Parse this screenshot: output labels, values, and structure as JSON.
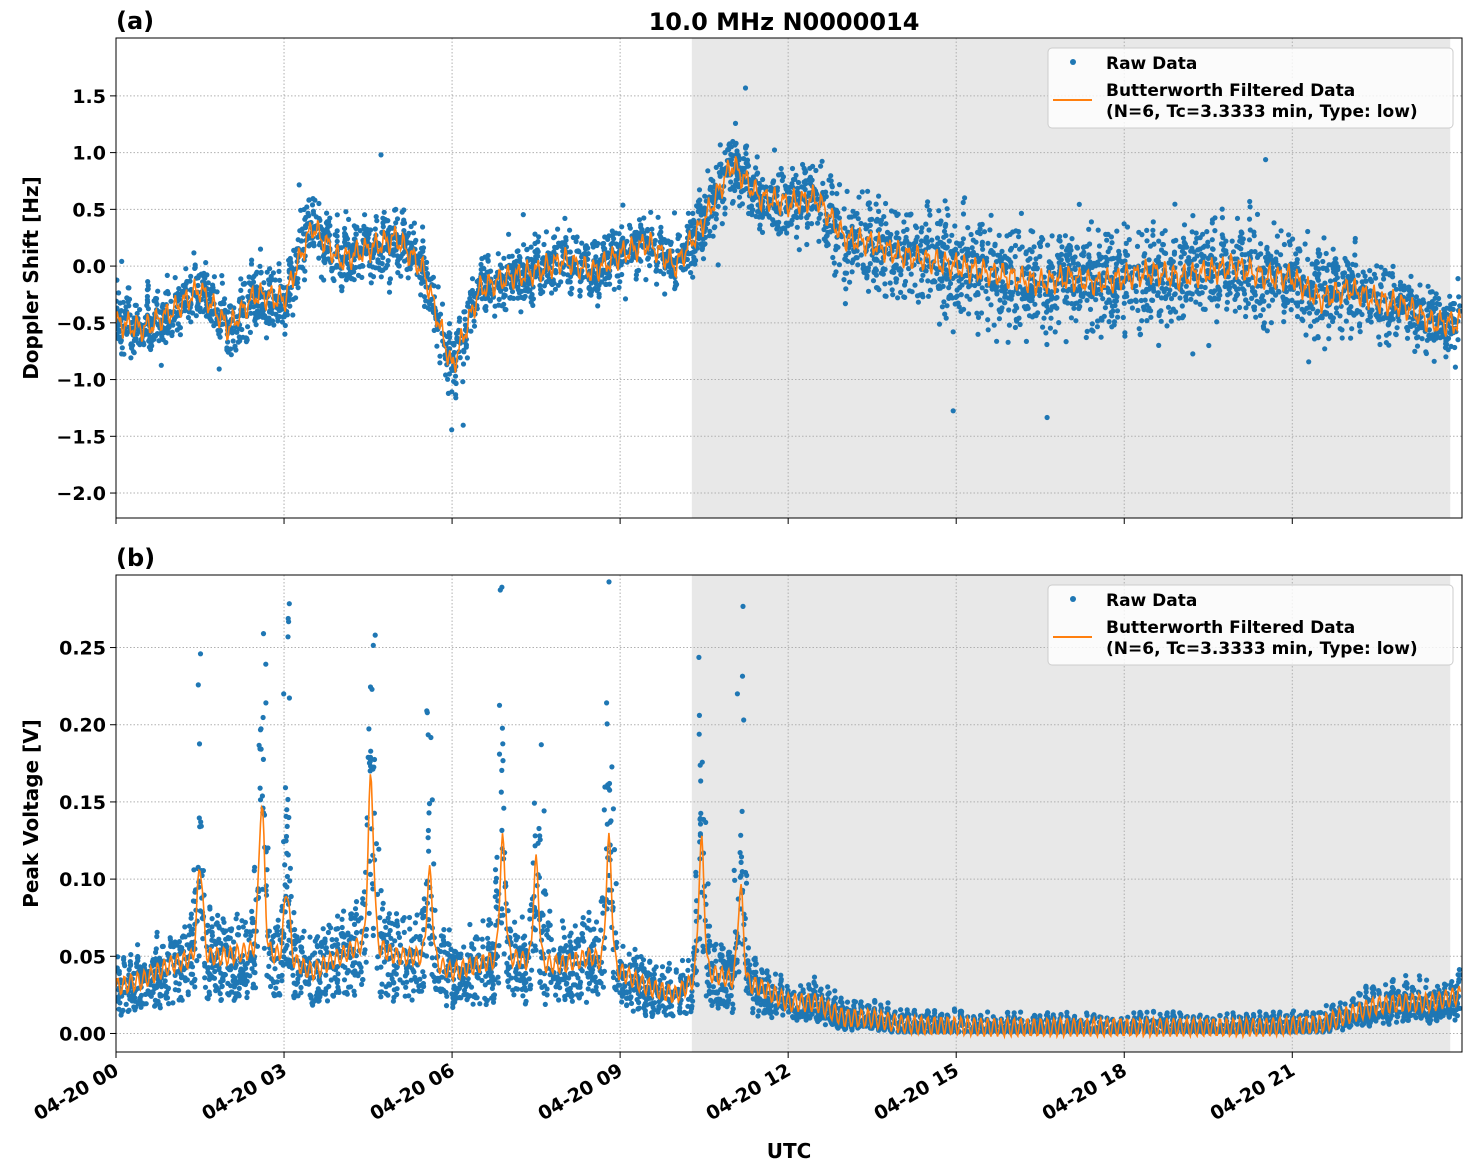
{
  "title": "10.0 MHz N0000014",
  "xlabel": "UTC",
  "x_tick_labels": [
    "04-20 00",
    "04-20 03",
    "04-20 06",
    "04-20 09",
    "04-20 12",
    "04-20 15",
    "04-20 18",
    "04-20 21"
  ],
  "legend": {
    "raw": "Raw Data",
    "filtered_line1": "Butterworth Filtered Data",
    "filtered_line2": "(N=6, Tc=3.3333 min, Type: low)",
    "placement": "top-right"
  },
  "colors": {
    "raw": "#1f77b4",
    "filtered": "#ff7f0e",
    "shade": "#e8e8e8"
  },
  "chart_data": [
    {
      "type": "scatter+line",
      "panel_label": "(a)",
      "ylabel": "Doppler Shift [Hz]",
      "xlim_hours": [
        0,
        24.03
      ],
      "ylim": [
        -2.22,
        2.01
      ],
      "yticks": [
        1.5,
        1.0,
        0.5,
        0.0,
        -0.5,
        -1.0,
        -1.5,
        -2.0
      ],
      "ytick_labels": [
        "1.5",
        "1.0",
        "0.5",
        "0.0",
        "−0.5",
        "−1.0",
        "−1.5",
        "−2.0"
      ],
      "grid": true,
      "shaded_span_hours": [
        10.28,
        23.82
      ],
      "x_hours_step": 0.5,
      "filtered": [
        -0.5,
        -0.55,
        -0.4,
        -0.2,
        -0.55,
        -0.25,
        -0.3,
        0.35,
        0.05,
        0.15,
        0.25,
        -0.05,
        -0.9,
        -0.2,
        -0.1,
        -0.05,
        0.05,
        -0.05,
        0.1,
        0.2,
        0.0,
        0.4,
        0.9,
        0.6,
        0.55,
        0.6,
        0.25,
        0.2,
        0.1,
        0.05,
        0.0,
        -0.05,
        -0.1,
        -0.15,
        -0.1,
        -0.15,
        -0.1,
        -0.05,
        -0.1,
        -0.05,
        0.0,
        -0.1,
        -0.1,
        -0.3,
        -0.2,
        -0.3,
        -0.35,
        -0.5,
        -0.5
      ],
      "raw_spread": [
        0.3,
        0.3,
        0.3,
        0.3,
        0.35,
        0.3,
        0.3,
        0.4,
        0.3,
        0.3,
        0.3,
        0.3,
        0.35,
        0.3,
        0.3,
        0.3,
        0.3,
        0.3,
        0.3,
        0.3,
        0.3,
        0.35,
        0.4,
        0.35,
        0.35,
        0.35,
        0.45,
        0.5,
        0.55,
        0.55,
        0.55,
        0.55,
        0.55,
        0.55,
        0.55,
        0.55,
        0.55,
        0.55,
        0.55,
        0.55,
        0.55,
        0.55,
        0.5,
        0.5,
        0.4,
        0.35,
        0.3,
        0.3,
        0.35
      ]
    },
    {
      "type": "scatter+line",
      "panel_label": "(b)",
      "ylabel": "Peak Voltage [V]",
      "xlim_hours": [
        0,
        24.03
      ],
      "ylim": [
        -0.012,
        0.297
      ],
      "yticks": [
        0.25,
        0.2,
        0.15,
        0.1,
        0.05,
        0.0
      ],
      "ytick_labels": [
        "0.25",
        "0.20",
        "0.15",
        "0.10",
        "0.05",
        "0.00"
      ],
      "grid": true,
      "shaded_span_hours": [
        10.28,
        23.82
      ],
      "x_hours_step": 0.5,
      "filtered": [
        0.03,
        0.035,
        0.045,
        0.05,
        0.05,
        0.055,
        0.05,
        0.04,
        0.05,
        0.06,
        0.05,
        0.05,
        0.04,
        0.045,
        0.05,
        0.045,
        0.045,
        0.05,
        0.04,
        0.03,
        0.025,
        0.04,
        0.035,
        0.03,
        0.02,
        0.02,
        0.01,
        0.01,
        0.006,
        0.005,
        0.005,
        0.004,
        0.004,
        0.004,
        0.004,
        0.004,
        0.004,
        0.004,
        0.004,
        0.004,
        0.004,
        0.004,
        0.005,
        0.006,
        0.012,
        0.018,
        0.02,
        0.02,
        0.025
      ],
      "peaks_filtered": [
        [
          1.5,
          0.105
        ],
        [
          2.6,
          0.14
        ],
        [
          3.05,
          0.09
        ],
        [
          4.55,
          0.15
        ],
        [
          5.6,
          0.1
        ],
        [
          6.9,
          0.12
        ],
        [
          7.5,
          0.11
        ],
        [
          8.8,
          0.125
        ],
        [
          10.45,
          0.13
        ],
        [
          11.15,
          0.105
        ]
      ],
      "peaks_raw_max": [
        [
          1.5,
          0.165
        ],
        [
          2.6,
          0.283
        ],
        [
          3.05,
          0.228
        ],
        [
          4.6,
          0.277
        ],
        [
          5.6,
          0.185
        ],
        [
          6.9,
          0.218
        ],
        [
          7.6,
          0.146
        ],
        [
          8.8,
          0.201
        ],
        [
          10.45,
          0.175
        ],
        [
          11.15,
          0.239
        ]
      ]
    }
  ]
}
